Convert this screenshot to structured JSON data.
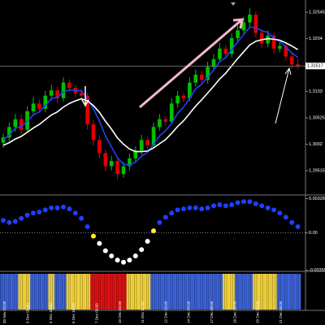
{
  "chart_data": [
    {
      "type": "candlestick",
      "candles": [
        [
          1.3005,
          1.3022,
          1.2995,
          1.3015
        ],
        [
          1.3015,
          1.3044,
          1.3008,
          1.3035
        ],
        [
          1.3035,
          1.306,
          1.3026,
          1.305
        ],
        [
          1.305,
          1.3058,
          1.302,
          1.303
        ],
        [
          1.303,
          1.3075,
          1.3024,
          1.3065
        ],
        [
          1.3065,
          1.3092,
          1.3058,
          1.308
        ],
        [
          1.308,
          1.3088,
          1.3062,
          1.307
        ],
        [
          1.307,
          1.3104,
          1.3063,
          1.3095
        ],
        [
          1.3095,
          1.3116,
          1.3086,
          1.3105
        ],
        [
          1.3105,
          1.3112,
          1.3082,
          1.309
        ],
        [
          1.309,
          1.313,
          1.3084,
          1.312
        ],
        [
          1.312,
          1.3126,
          1.3102,
          1.311
        ],
        [
          1.311,
          1.3115,
          1.3092,
          1.31
        ],
        [
          1.31,
          1.3108,
          1.3086,
          1.3095
        ],
        [
          1.3095,
          1.31,
          1.303,
          1.304
        ],
        [
          1.304,
          1.3048,
          1.3,
          1.301
        ],
        [
          1.301,
          1.3018,
          1.2975,
          1.2985
        ],
        [
          1.2985,
          1.2992,
          1.295,
          1.296
        ],
        [
          1.296,
          1.298,
          1.2952,
          1.297
        ],
        [
          1.297,
          1.2976,
          1.2935,
          1.2945
        ],
        [
          1.2945,
          1.2968,
          1.2938,
          1.296
        ],
        [
          1.296,
          1.2984,
          1.2952,
          1.2975
        ],
        [
          1.2975,
          1.2998,
          1.2966,
          1.299
        ],
        [
          1.299,
          1.302,
          1.2982,
          1.301
        ],
        [
          1.301,
          1.3016,
          1.2992,
          1.3
        ],
        [
          1.3,
          1.3044,
          1.2994,
          1.3035
        ],
        [
          1.3035,
          1.306,
          1.3028,
          1.305
        ],
        [
          1.305,
          1.3056,
          1.3036,
          1.3045
        ],
        [
          1.3045,
          1.309,
          1.304,
          1.308
        ],
        [
          1.308,
          1.3104,
          1.3072,
          1.3095
        ],
        [
          1.3095,
          1.31,
          1.3082,
          1.309
        ],
        [
          1.309,
          1.313,
          1.3084,
          1.312
        ],
        [
          1.312,
          1.3145,
          1.3112,
          1.3135
        ],
        [
          1.3135,
          1.3142,
          1.3116,
          1.3125
        ],
        [
          1.3125,
          1.316,
          1.3118,
          1.315
        ],
        [
          1.315,
          1.3175,
          1.3142,
          1.3165
        ],
        [
          1.3165,
          1.3196,
          1.3158,
          1.3185
        ],
        [
          1.3185,
          1.3192,
          1.3166,
          1.3175
        ],
        [
          1.3175,
          1.3214,
          1.3168,
          1.3205
        ],
        [
          1.3205,
          1.323,
          1.3196,
          1.322
        ],
        [
          1.322,
          1.3246,
          1.3212,
          1.3235
        ],
        [
          1.3235,
          1.3262,
          1.3226,
          1.325
        ],
        [
          1.325,
          1.3256,
          1.3206,
          1.3215
        ],
        [
          1.3215,
          1.3222,
          1.3186,
          1.3195
        ],
        [
          1.3195,
          1.322,
          1.3188,
          1.321
        ],
        [
          1.321,
          1.3216,
          1.3176,
          1.3185
        ],
        [
          1.3185,
          1.32,
          1.3178,
          1.319
        ],
        [
          1.319,
          1.3196,
          1.3162,
          1.317
        ],
        [
          1.317,
          1.3176,
          1.3146,
          1.3155
        ],
        [
          1.3155,
          1.3165,
          1.3145,
          1.3152
        ]
      ],
      "up_color": "#00c000",
      "down_color": "#e00000",
      "series": [
        {
          "color": "#2040ff",
          "values": [
            1.301,
            1.302,
            1.3033,
            1.3036,
            1.3046,
            1.3058,
            1.3064,
            1.3076,
            1.3089,
            1.3092,
            1.3102,
            1.3106,
            1.3105,
            1.3104,
            1.309,
            1.307,
            1.3046,
            1.3018,
            1.2997,
            1.2976,
            1.2964,
            1.2962,
            1.2968,
            1.2979,
            1.2987,
            1.3002,
            1.3018,
            1.3028,
            1.3042,
            1.3061,
            1.3073,
            1.309,
            1.3108,
            1.3117,
            1.313,
            1.3144,
            1.316,
            1.3168,
            1.3183,
            1.3198,
            1.3212,
            1.3226,
            1.3225,
            1.3219,
            1.3216,
            1.3205,
            1.3199,
            1.3188,
            1.3177,
            1.3168
          ]
        },
        {
          "color": "#ffffff",
          "values": [
            1.3,
            1.3005,
            1.3012,
            1.3017,
            1.3025,
            1.3033,
            1.304,
            1.3049,
            1.3058,
            1.3064,
            1.3073,
            1.308,
            1.3085,
            1.3089,
            1.3085,
            1.3076,
            1.3063,
            1.3046,
            1.3031,
            1.3014,
            1.3002,
            1.2993,
            1.2988,
            1.2988,
            1.2989,
            1.2995,
            1.3003,
            1.3011,
            1.3023,
            1.3036,
            1.3047,
            1.3061,
            1.3075,
            1.3087,
            1.31,
            1.3113,
            1.3127,
            1.3138,
            1.3152,
            1.3166,
            1.3179,
            1.3192,
            1.3199,
            1.3202,
            1.3204,
            1.3203,
            1.3201,
            1.3196,
            1.319,
            1.3183
          ]
        }
      ],
      "ylim": [
        1.2908,
        1.3278
      ],
      "yticks": [
        1.32545,
        1.3204,
        1.3103,
        1.30525,
        1.3002,
        1.29515
      ],
      "last_price": 1.31517
    },
    {
      "type": "dots",
      "values": [
        0.0012,
        0.001,
        0.0011,
        0.0014,
        0.0017,
        0.0019,
        0.002,
        0.0022,
        0.0024,
        0.0024,
        0.0025,
        0.0023,
        0.0019,
        0.0014,
        0.0006,
        -0.0003,
        -0.001,
        -0.0017,
        -0.0022,
        -0.0026,
        -0.0028,
        -0.0026,
        -0.0022,
        -0.0016,
        -0.0008,
        0.0002,
        0.001,
        0.0015,
        0.0019,
        0.0022,
        0.0023,
        0.0024,
        0.0024,
        0.0023,
        0.0024,
        0.0026,
        0.0027,
        0.0026,
        0.0027,
        0.0029,
        0.003,
        0.003,
        0.0028,
        0.0026,
        0.0024,
        0.0022,
        0.0019,
        0.0015,
        0.001,
        0.0006
      ],
      "up_color": "#1f3fff",
      "down_color": "#ffffff",
      "turn_color": "#ffee33",
      "ylim": [
        -0.0036,
        0.0034
      ],
      "yticks": [
        {
          "value": 0.00328,
          "label": "0.003280"
        },
        {
          "value": 0,
          "label": "0.00"
        },
        -0.003559
      ]
    },
    {
      "type": "color_bars",
      "colors": [
        "#3b62d9",
        "#3b62d9",
        "#3b62d9",
        "#f2d23a",
        "#f2d23a",
        "#3b62d9",
        "#3b62d9",
        "#3b62d9",
        "#f2d23a",
        "#3b62d9",
        "#3b62d9",
        "#f2d23a",
        "#f2d23a",
        "#f2d23a",
        "#f2d23a",
        "#e01010",
        "#e01010",
        "#e01010",
        "#e01010",
        "#e01010",
        "#e01010",
        "#f2d23a",
        "#f2d23a",
        "#f2d23a",
        "#f2d23a",
        "#3b62d9",
        "#3b62d9",
        "#3b62d9",
        "#3b62d9",
        "#3b62d9",
        "#3b62d9",
        "#3b62d9",
        "#3b62d9",
        "#3b62d9",
        "#3b62d9",
        "#3b62d9",
        "#3b62d9",
        "#f2d23a",
        "#f2d23a",
        "#3b62d9",
        "#3b62d9",
        "#3b62d9",
        "#f2d23a",
        "#f2d23a",
        "#f2d23a",
        "#f2d23a",
        "#3b62d9",
        "#3b62d9",
        "#3b62d9",
        "#3b62d9"
      ],
      "categories": [
        "30 Nov 20:00",
        "3 Dec 08:00",
        "4 Dec 16:00",
        "5 Dec 16:00",
        "7 Dec 00:00",
        "10 Dec 04:00",
        "11 Dec 12:00",
        "12 Dec 20:00",
        "14 Dec 04:00",
        "17 Dec 08:00",
        "18 Dec 16:00",
        "20 Dec 00:00",
        "21 Dec 08:00"
      ]
    }
  ]
}
